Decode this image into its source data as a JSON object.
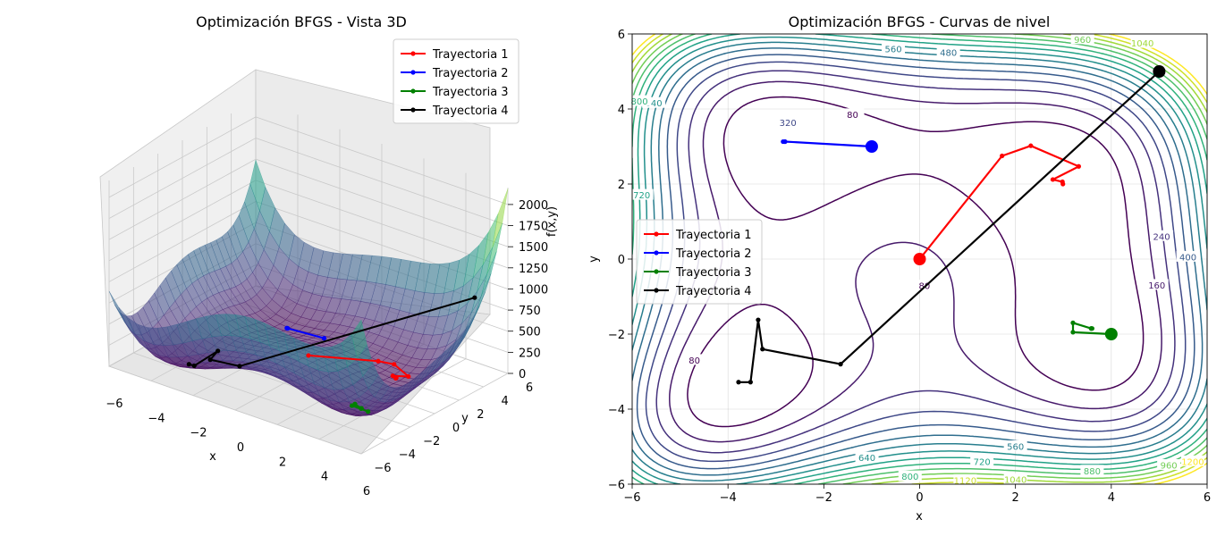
{
  "chart_data": [
    {
      "type": "surface3d",
      "title": "Optimización BFGS - Vista 3D",
      "xlabel": "x",
      "ylabel": "y",
      "zlabel": "f(x,y)",
      "xlim": [
        -6,
        6
      ],
      "ylim": [
        -6,
        6
      ],
      "zlim": [
        0,
        2200
      ],
      "xticks": [
        "−6",
        "−4",
        "−2",
        "0",
        "2",
        "4",
        "6"
      ],
      "yticks": [
        "−6",
        "−4",
        "−2",
        "0",
        "2",
        "4",
        "6"
      ],
      "zticks": [
        "0",
        "250",
        "500",
        "750",
        "1000",
        "1250",
        "1500",
        "1750",
        "2000"
      ],
      "grid": true,
      "colormap": "viridis",
      "legend_position": "upper right",
      "series": [
        {
          "name": "Trayectoria 1",
          "color": "#ff0000",
          "x": [
            0,
            1.72,
            2.32,
            3.32,
            2.78,
            2.98,
            2.99
          ],
          "y": [
            0,
            2.75,
            3.02,
            2.47,
            2.12,
            2.06,
            2.0
          ]
        },
        {
          "name": "Trayectoria 2",
          "color": "#0000ff",
          "x": [
            -1.0,
            -2.81,
            -2.85,
            -2.81
          ],
          "y": [
            3.0,
            3.13,
            3.13,
            3.13
          ]
        },
        {
          "name": "Trayectoria 3",
          "color": "#008000",
          "x": [
            4.0,
            3.2,
            3.2,
            3.58,
            3.6,
            3.58
          ],
          "y": [
            -2.0,
            -1.95,
            -1.7,
            -1.85,
            -1.85,
            -1.85
          ]
        },
        {
          "name": "Trayectoria 4",
          "color": "#000000",
          "x": [
            5.0,
            -1.65,
            -3.28,
            -3.37,
            -3.53,
            -3.78
          ],
          "y": [
            5.0,
            -2.8,
            -2.4,
            -1.62,
            -3.28,
            -3.28
          ]
        }
      ]
    },
    {
      "type": "contour",
      "title": "Optimización BFGS - Curvas de nivel",
      "xlabel": "x",
      "ylabel": "y",
      "xlim": [
        -6,
        6
      ],
      "ylim": [
        -6,
        6
      ],
      "xticks": [
        "−6",
        "−4",
        "−2",
        "0",
        "2",
        "4",
        "6"
      ],
      "yticks": [
        "−6",
        "−4",
        "−2",
        "0",
        "2",
        "4",
        "6"
      ],
      "levels": [
        80,
        160,
        240,
        320,
        400,
        480,
        560,
        640,
        720,
        800,
        880,
        960,
        1040,
        1120,
        1200
      ],
      "level_labels": [
        "80",
        "80",
        "80",
        "160",
        "240",
        "320",
        "400",
        "480",
        "560",
        "560",
        "640",
        "640",
        "720",
        "720",
        "800",
        "800",
        "880",
        "960",
        "960",
        "1040",
        "1040",
        "1120",
        "1200"
      ],
      "grid": true,
      "colormap": "viridis",
      "legend_position": "center left",
      "series": [
        {
          "name": "Trayectoria 1",
          "color": "#ff0000",
          "x": [
            0,
            1.72,
            2.32,
            3.32,
            2.78,
            2.98,
            2.99
          ],
          "y": [
            0,
            2.75,
            3.02,
            2.47,
            2.12,
            2.06,
            2.0
          ]
        },
        {
          "name": "Trayectoria 2",
          "color": "#0000ff",
          "x": [
            -1.0,
            -2.81,
            -2.85,
            -2.81
          ],
          "y": [
            3.0,
            3.13,
            3.13,
            3.13
          ]
        },
        {
          "name": "Trayectoria 3",
          "color": "#008000",
          "x": [
            4.0,
            3.2,
            3.2,
            3.58,
            3.6,
            3.58
          ],
          "y": [
            -2.0,
            -1.95,
            -1.7,
            -1.85,
            -1.85,
            -1.85
          ]
        },
        {
          "name": "Trayectoria 4",
          "color": "#000000",
          "x": [
            5.0,
            -1.65,
            -3.28,
            -3.37,
            -3.53,
            -3.78
          ],
          "y": [
            5.0,
            -2.8,
            -2.4,
            -1.62,
            -3.28,
            -3.28
          ]
        }
      ]
    }
  ]
}
